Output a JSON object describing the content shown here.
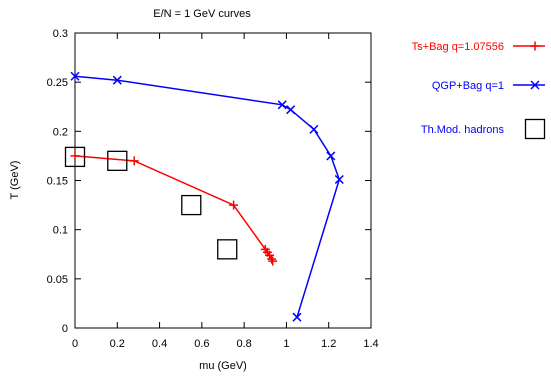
{
  "chart_data": {
    "type": "scatter",
    "title": "E/N = 1 GeV curves",
    "xlabel": "mu (GeV)",
    "ylabel": "T (GeV)",
    "xlim": [
      0,
      1.4
    ],
    "ylim": [
      0,
      0.3
    ],
    "xticks": [
      "0",
      "0.2",
      "0.4",
      "0.6",
      "0.8",
      "1",
      "1.2",
      "1.4"
    ],
    "yticks": [
      "0",
      "0.05",
      "0.1",
      "0.15",
      "0.2",
      "0.25",
      "0.3"
    ],
    "grid": false,
    "legend_position": "right, outside plot",
    "series": [
      {
        "name": "Ts+Bag q=1.07556",
        "color": "#ff0000",
        "marker": "plus",
        "line": true,
        "x": [
          0.0,
          0.28,
          0.75,
          0.9,
          0.91,
          0.92,
          0.93,
          0.935
        ],
        "y": [
          0.175,
          0.17,
          0.125,
          0.08,
          0.077,
          0.074,
          0.07,
          0.068
        ]
      },
      {
        "name": "QGP+Bag q=1",
        "color": "#0000ff",
        "marker": "x",
        "line": true,
        "x": [
          0.0,
          0.2,
          0.98,
          1.02,
          1.13,
          1.21,
          1.25,
          1.05
        ],
        "y": [
          0.256,
          0.252,
          0.227,
          0.222,
          0.202,
          0.175,
          0.151,
          0.011
        ]
      },
      {
        "name": "Th.Mod. hadrons",
        "color": "#000000",
        "marker": "square",
        "line": false,
        "x": [
          0.0,
          0.2,
          0.55,
          0.72
        ],
        "y": [
          0.174,
          0.17,
          0.125,
          0.08
        ]
      }
    ]
  }
}
